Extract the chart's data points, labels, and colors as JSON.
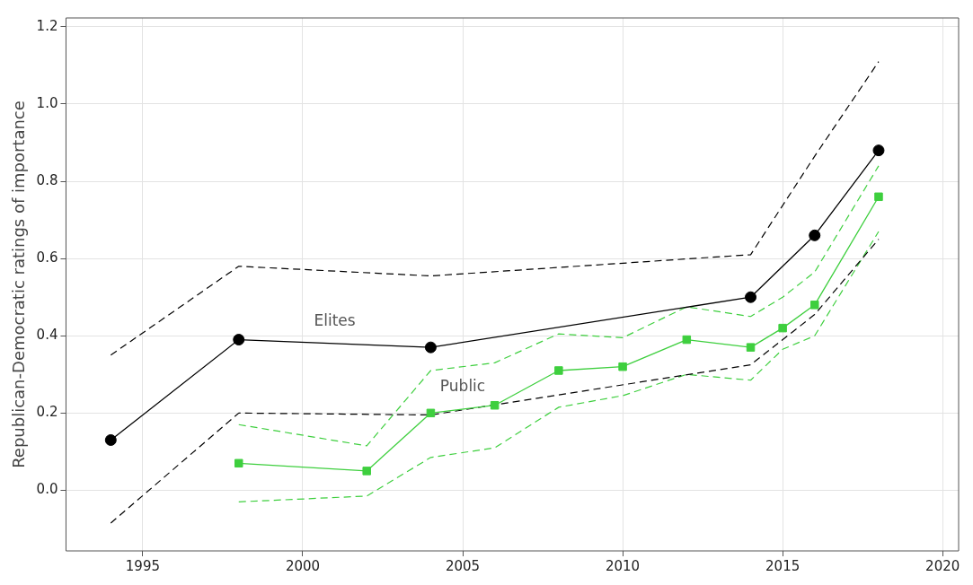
{
  "chart_data": {
    "type": "line",
    "ylabel": "Republican-Democratic ratings of importance",
    "xlim": [
      1992.6,
      2020.5
    ],
    "xticks": [
      1995,
      2000,
      2005,
      2010,
      2015,
      2020
    ],
    "ylim": [
      -0.157,
      1.223
    ],
    "yticks": [
      {
        "value": 0,
        "label": "0.0"
      },
      {
        "value": 0.2,
        "label": "0.2"
      },
      {
        "value": 0.4,
        "label": "0.4"
      },
      {
        "value": 0.6,
        "label": "0.6"
      },
      {
        "value": 0.8,
        "label": "0.8"
      },
      {
        "value": 1,
        "label": "1.0"
      },
      {
        "value": 1.2,
        "label": "1.2"
      }
    ],
    "grid": true,
    "legend": false,
    "series": [
      {
        "name": "Elites",
        "color": "#000000",
        "marker": "circle",
        "line_style": "solid",
        "x": [
          1994,
          1998,
          2004,
          2014,
          2016,
          2018
        ],
        "values": [
          0.13,
          0.39,
          0.37,
          0.5,
          0.66,
          0.88
        ]
      },
      {
        "color": "#000000",
        "marker": "none",
        "line_style": "dashed",
        "x": [
          1994,
          1998,
          2004,
          2014,
          2016,
          2018
        ],
        "values": [
          -0.085,
          0.2,
          0.195,
          0.325,
          0.455,
          0.65
        ]
      },
      {
        "color": "#000000",
        "marker": "none",
        "line_style": "dashed",
        "x": [
          1994,
          1998,
          2004,
          2014,
          2016,
          2018
        ],
        "values": [
          0.35,
          0.58,
          0.555,
          0.61,
          0.865,
          1.11
        ]
      },
      {
        "name": "Public",
        "color": "#3ecf3e",
        "marker": "square",
        "line_style": "solid",
        "x": [
          1998,
          2002,
          2004,
          2006,
          2008,
          2010,
          2012,
          2014,
          2015,
          2016,
          2018
        ],
        "values": [
          0.07,
          0.05,
          0.2,
          0.22,
          0.31,
          0.32,
          0.39,
          0.37,
          0.42,
          0.48,
          0.76
        ]
      },
      {
        "color": "#3ecf3e",
        "marker": "none",
        "line_style": "dashed",
        "x": [
          1998,
          2002,
          2004,
          2006,
          2008,
          2010,
          2012,
          2014,
          2015,
          2016,
          2018
        ],
        "values": [
          -0.03,
          -0.015,
          0.085,
          0.11,
          0.215,
          0.245,
          0.3,
          0.285,
          0.365,
          0.4,
          0.67
        ]
      },
      {
        "color": "#3ecf3e",
        "marker": "none",
        "line_style": "dashed",
        "x": [
          1998,
          2002,
          2004,
          2006,
          2008,
          2010,
          2012,
          2014,
          2015,
          2016,
          2018
        ],
        "values": [
          0.17,
          0.115,
          0.31,
          0.33,
          0.405,
          0.395,
          0.475,
          0.45,
          0.5,
          0.565,
          0.84
        ]
      }
    ]
  }
}
